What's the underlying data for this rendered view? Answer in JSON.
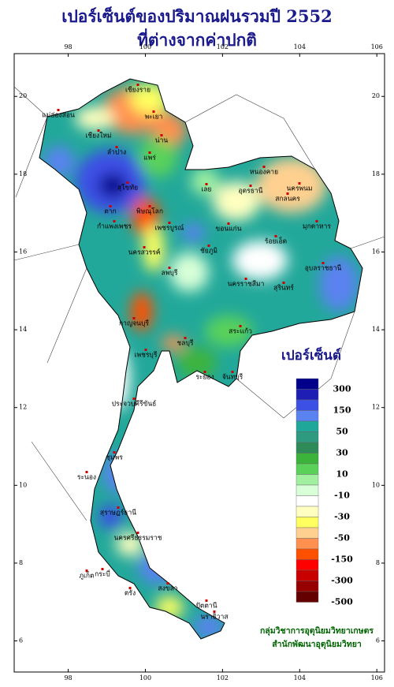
{
  "title_lines": [
    "เปอร์เซ็นต์ของปริมาณฝนรวมปี 2552",
    "ที่ต่างจากค่าปกติ"
  ],
  "map": {
    "xlim": [
      96.6,
      106.2
    ],
    "ylim": [
      5.2,
      21.1
    ],
    "xticks": [
      98,
      100,
      102,
      104,
      106
    ],
    "yticks": [
      20,
      18,
      16,
      14,
      12,
      10,
      8,
      6
    ],
    "places": [
      "เชียงราย",
      "แม่ฮ่องสอน",
      "เชียงใหม่",
      "พะเยา",
      "น่าน",
      "ลำปาง",
      "แพร่",
      "ตาก",
      "สุโขทัย",
      "พิษณุโลก",
      "กำแพงเพชร",
      "เพชรบูรณ์",
      "นครสวรรค์",
      "เลย",
      "หนองคาย",
      "อุดรธานี",
      "สกลนคร",
      "นครพนม",
      "มุกดาหาร",
      "ขอนแก่น",
      "ชัยภูมิ",
      "ร้อยเอ็ด",
      "นครราชสีมา",
      "สุรินทร์",
      "อุบลราชธานี",
      "ลพบุรี",
      "กาญจนบุรี",
      "สระแก้ว",
      "ชลบุรี",
      "ระยอง",
      "จันทบุรี",
      "เพชรบุรี",
      "ประจวบคีรีขันธ์",
      "ชุมพร",
      "ระนอง",
      "สุราษฎร์ธานี",
      "นครศรีธรรมราช",
      "ภูเก็ต",
      "กระบี่",
      "ตรัง",
      "สงขลา",
      "ปัตตานี",
      "นราธิวาส"
    ]
  },
  "legend": {
    "title": "เปอร์เซ็นต์",
    "labels": [
      300,
      150,
      50,
      30,
      10,
      -10,
      -30,
      -50,
      -150,
      -300,
      -500
    ],
    "colors": [
      "#00008b",
      "#1e1eb4",
      "#3c50e6",
      "#5a82f0",
      "#1fa89a",
      "#2e9a80",
      "#2e8b57",
      "#3cb43c",
      "#5ad25a",
      "#a0f0a0",
      "#d8ffd8",
      "#ffffff",
      "#ffffc0",
      "#ffff60",
      "#ffd090",
      "#ff9050",
      "#ff5000",
      "#ff0000",
      "#c80000",
      "#960000",
      "#640000"
    ]
  },
  "credits": [
    "กลุ่มวิชาการอุตุนิยมวิทยาเกษตร",
    "สำนักพัฒนาอุตุนิยมวิทยา"
  ]
}
